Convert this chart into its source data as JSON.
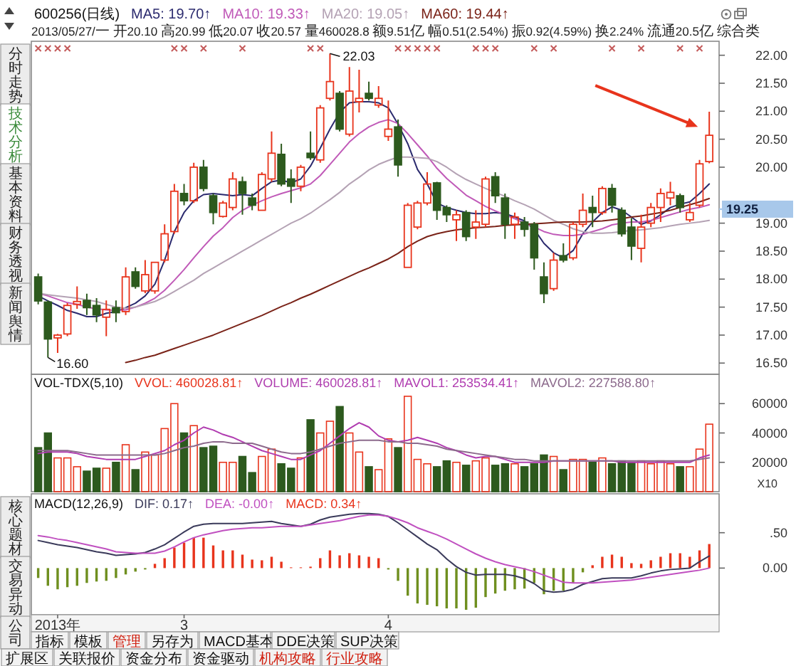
{
  "chart_data": [
    {
      "type": "candlestick",
      "title": "600256(日线)",
      "subtitle": "2013/05/27/一 开20.10 高20.99 低20.07 收20.57 量460028.8 额9.51亿 幅0.51(2.54%) 振0.92(4.59%) 换2.24% 流通20.5亿 综合类",
      "legend": "top",
      "tick_labels": "y",
      "categories": [
        null,
        null,
        null,
        null,
        null,
        null,
        null,
        null,
        null,
        null,
        null,
        null,
        null,
        null,
        null,
        null,
        null,
        null,
        null,
        null,
        null,
        null,
        null,
        null,
        null,
        null,
        null,
        null,
        null,
        null,
        null,
        null,
        null,
        null,
        null,
        null,
        null,
        null,
        null,
        null,
        null,
        null,
        null,
        null,
        null,
        null,
        null,
        null,
        null,
        null,
        null,
        null,
        null,
        null,
        null,
        null,
        null,
        null,
        null,
        null,
        null,
        null,
        null,
        null,
        null,
        null,
        null,
        null,
        null,
        null
      ],
      "ohlc": [
        [
          18.04,
          18.1,
          17.55,
          17.61
        ],
        [
          17.59,
          17.62,
          16.6,
          16.93
        ],
        [
          16.95,
          17.02,
          16.68,
          17.0
        ],
        [
          17.02,
          17.57,
          16.98,
          17.53
        ],
        [
          17.55,
          17.87,
          17.47,
          17.6
        ],
        [
          17.62,
          17.74,
          17.36,
          17.49
        ],
        [
          17.53,
          17.66,
          17.23,
          17.36
        ],
        [
          17.32,
          17.62,
          16.98,
          17.46
        ],
        [
          17.49,
          17.62,
          17.23,
          17.4
        ],
        [
          17.42,
          18.21,
          17.36,
          18.04
        ],
        [
          18.13,
          18.21,
          17.83,
          17.87
        ],
        [
          17.79,
          18.34,
          17.75,
          18.08
        ],
        [
          17.79,
          18.3,
          17.74,
          18.3
        ],
        [
          18.34,
          18.98,
          18.3,
          18.81
        ],
        [
          18.85,
          19.7,
          18.81,
          19.57
        ],
        [
          19.53,
          19.7,
          19.32,
          19.4
        ],
        [
          19.4,
          20.08,
          19.36,
          20.0
        ],
        [
          20.0,
          20.13,
          19.57,
          19.62
        ],
        [
          19.49,
          19.53,
          18.98,
          19.19
        ],
        [
          19.12,
          19.4,
          19.1,
          19.36
        ],
        [
          19.28,
          19.91,
          19.23,
          19.79
        ],
        [
          19.74,
          19.83,
          19.15,
          19.53
        ],
        [
          19.45,
          19.53,
          19.23,
          19.32
        ],
        [
          19.23,
          19.91,
          19.23,
          19.87
        ],
        [
          19.79,
          20.64,
          19.74,
          20.25
        ],
        [
          20.23,
          20.42,
          19.66,
          19.7
        ],
        [
          19.79,
          19.96,
          19.36,
          19.66
        ],
        [
          19.66,
          20.04,
          19.57,
          20.0
        ],
        [
          20.25,
          20.64,
          20.13,
          20.17
        ],
        [
          20.13,
          21.11,
          20.08,
          21.06
        ],
        [
          21.23,
          22.03,
          21.19,
          21.53
        ],
        [
          21.32,
          21.36,
          20.64,
          20.68
        ],
        [
          20.59,
          21.79,
          20.55,
          21.36
        ],
        [
          21.17,
          21.74,
          20.98,
          21.23
        ],
        [
          21.32,
          21.53,
          21.19,
          21.23
        ],
        [
          21.11,
          21.45,
          21.06,
          21.23
        ],
        [
          20.55,
          21.19,
          20.47,
          20.68
        ],
        [
          20.72,
          20.85,
          19.83,
          20.04
        ],
        [
          18.21,
          19.36,
          18.21,
          19.32
        ],
        [
          18.93,
          19.4,
          18.89,
          19.36
        ],
        [
          19.36,
          19.91,
          19.32,
          19.7
        ],
        [
          19.72,
          19.74,
          19.06,
          19.23
        ],
        [
          19.28,
          19.32,
          19.02,
          19.15
        ],
        [
          19.06,
          19.23,
          18.68,
          19.15
        ],
        [
          19.19,
          19.23,
          18.68,
          18.76
        ],
        [
          18.93,
          19.23,
          18.72,
          19.02
        ],
        [
          18.98,
          19.83,
          18.93,
          19.79
        ],
        [
          19.83,
          19.91,
          19.36,
          19.49
        ],
        [
          19.45,
          19.53,
          18.72,
          18.98
        ],
        [
          18.98,
          19.19,
          18.72,
          19.11
        ],
        [
          19.02,
          19.11,
          18.76,
          18.89
        ],
        [
          18.98,
          19.02,
          18.17,
          18.38
        ],
        [
          18.04,
          18.3,
          17.57,
          17.74
        ],
        [
          17.83,
          18.47,
          17.79,
          18.34
        ],
        [
          18.42,
          18.64,
          18.3,
          18.34
        ],
        [
          18.38,
          19.02,
          18.34,
          18.98
        ],
        [
          18.98,
          19.53,
          18.93,
          19.23
        ],
        [
          19.28,
          19.49,
          18.93,
          19.19
        ],
        [
          19.19,
          19.66,
          19.15,
          19.62
        ],
        [
          19.62,
          19.7,
          19.19,
          19.32
        ],
        [
          19.23,
          19.28,
          18.76,
          18.81
        ],
        [
          18.93,
          19.09,
          18.34,
          18.59
        ],
        [
          18.55,
          19.15,
          18.3,
          18.93
        ],
        [
          19.0,
          19.36,
          18.93,
          19.28
        ],
        [
          19.28,
          19.62,
          19.02,
          19.53
        ],
        [
          19.45,
          19.74,
          19.32,
          19.55
        ],
        [
          19.49,
          19.53,
          19.19,
          19.28
        ],
        [
          19.06,
          19.36,
          19.02,
          19.19
        ],
        [
          19.32,
          20.13,
          19.28,
          20.06
        ],
        [
          20.1,
          20.99,
          20.07,
          20.57
        ]
      ],
      "colors": [
        "#2d5a1e",
        "#2d5a1e",
        "#e8341c",
        "#e8341c",
        "#e8341c",
        "#2d5a1e",
        "#2d5a1e",
        "#e8341c",
        "#2d5a1e",
        "#e8341c",
        "#2d5a1e",
        "#e8341c",
        "#e8341c",
        "#e8341c",
        "#e8341c",
        "#2d5a1e",
        "#e8341c",
        "#2d5a1e",
        "#2d5a1e",
        "#e8341c",
        "#e8341c",
        "#2d5a1e",
        "#2d5a1e",
        "#e8341c",
        "#e8341c",
        "#2d5a1e",
        "#2d5a1e",
        "#e8341c",
        "#2d5a1e",
        "#e8341c",
        "#e8341c",
        "#2d5a1e",
        "#e8341c",
        "#e8341c",
        "#2d5a1e",
        "#e8341c",
        "#e8341c",
        "#2d5a1e",
        "#e8341c",
        "#e8341c",
        "#e8341c",
        "#2d5a1e",
        "#2d5a1e",
        "#e8341c",
        "#2d5a1e",
        "#e8341c",
        "#e8341c",
        "#2d5a1e",
        "#2d5a1e",
        "#e8341c",
        "#2d5a1e",
        "#2d5a1e",
        "#2d5a1e",
        "#e8341c",
        "#2d5a1e",
        "#e8341c",
        "#e8341c",
        "#2d5a1e",
        "#e8341c",
        "#2d5a1e",
        "#2d5a1e",
        "#2d5a1e",
        "#e8341c",
        "#e8341c",
        "#e8341c",
        "#e8341c",
        "#2d5a1e",
        "#e8341c",
        "#e8341c",
        "#e8341c"
      ],
      "series": [
        {
          "name": "MA5: 19.70↑",
          "type": "line",
          "color": "#2b2a6e",
          "values": [
            17.7,
            17.61,
            17.53,
            17.44,
            17.39,
            17.33,
            17.33,
            17.39,
            17.42,
            17.49,
            17.57,
            17.7,
            17.91,
            18.34,
            18.85,
            19.19,
            19.4,
            19.51,
            19.53,
            19.51,
            19.49,
            19.51,
            19.49,
            19.62,
            19.74,
            19.77,
            19.72,
            19.79,
            20.02,
            20.34,
            20.68,
            20.98,
            21.15,
            21.17,
            21.17,
            21.15,
            21.06,
            20.77,
            20.42,
            19.96,
            19.7,
            19.36,
            19.28,
            19.23,
            19.19,
            19.17,
            19.17,
            19.19,
            19.17,
            19.11,
            19.04,
            18.89,
            18.64,
            18.47,
            18.38,
            18.51,
            18.81,
            19.02,
            19.19,
            19.29,
            19.23,
            19.11,
            18.98,
            19.04,
            19.15,
            19.28,
            19.34,
            19.38,
            19.53,
            19.7
          ]
        },
        {
          "name": "MA10: 19.33↑",
          "type": "line",
          "color": "#c05ab8",
          "values": [
            17.75,
            17.7,
            17.64,
            17.58,
            17.55,
            17.5,
            17.47,
            17.45,
            17.44,
            17.45,
            17.5,
            17.57,
            17.66,
            17.8,
            17.98,
            18.17,
            18.38,
            18.58,
            18.77,
            18.92,
            19.1,
            19.23,
            19.32,
            19.4,
            19.47,
            19.53,
            19.58,
            19.63,
            19.7,
            19.85,
            20.05,
            20.25,
            20.45,
            20.6,
            20.72,
            20.8,
            20.85,
            20.78,
            20.6,
            20.4,
            20.2,
            19.98,
            19.8,
            19.65,
            19.5,
            19.4,
            19.3,
            19.22,
            19.15,
            19.08,
            19.0,
            18.93,
            18.85,
            18.8,
            18.78,
            18.78,
            18.8,
            18.85,
            18.9,
            18.97,
            19.0,
            19.02,
            19.02,
            19.05,
            19.1,
            19.15,
            19.2,
            19.25,
            19.28,
            19.33
          ]
        },
        {
          "name": "MA20: 19.05↑",
          "type": "line",
          "color": "#b4a2b4",
          "values": [
            17.75,
            17.72,
            17.7,
            17.68,
            17.66,
            17.63,
            17.6,
            17.55,
            17.5,
            17.48,
            17.5,
            17.55,
            17.6,
            17.68,
            17.78,
            17.88,
            17.98,
            18.1,
            18.2,
            18.3,
            18.4,
            18.5,
            18.6,
            18.7,
            18.8,
            18.9,
            19.0,
            19.08,
            19.18,
            19.3,
            19.42,
            19.55,
            19.7,
            19.82,
            19.95,
            20.05,
            20.12,
            20.18,
            20.18,
            20.17,
            20.16,
            20.1,
            20.0,
            19.88,
            19.78,
            19.7,
            19.62,
            19.55,
            19.48,
            19.4,
            19.33,
            19.25,
            19.15,
            19.05,
            18.98,
            18.9,
            18.85,
            18.82,
            18.82,
            18.83,
            18.85,
            18.87,
            18.88,
            18.9,
            18.92,
            18.95,
            18.98,
            19.0,
            19.02,
            19.05
          ]
        },
        {
          "name": "MA60: 19.44↑",
          "type": "line",
          "color": "#7a2318",
          "values": [
            null,
            null,
            null,
            null,
            null,
            null,
            null,
            null,
            null,
            16.51,
            16.55,
            16.6,
            16.64,
            16.7,
            16.76,
            16.82,
            16.88,
            16.94,
            17.0,
            17.07,
            17.14,
            17.21,
            17.28,
            17.35,
            17.43,
            17.51,
            17.58,
            17.66,
            17.73,
            17.81,
            17.89,
            17.97,
            18.05,
            18.13,
            18.2,
            18.28,
            18.36,
            18.46,
            18.58,
            18.68,
            18.76,
            18.81,
            18.85,
            18.88,
            18.9,
            18.92,
            18.93,
            18.94,
            18.96,
            18.97,
            18.98,
            18.99,
            19.0,
            19.01,
            19.02,
            19.02,
            19.02,
            19.03,
            19.04,
            19.06,
            19.08,
            19.11,
            19.13,
            19.16,
            19.19,
            19.23,
            19.28,
            19.33,
            19.38,
            19.44
          ]
        }
      ],
      "ylim": [
        16.3,
        22.25
      ],
      "yticks": [
        {
          "value": 16.5,
          "label": "16.50"
        },
        {
          "value": 17,
          "label": "17.00"
        },
        {
          "value": 17.5,
          "label": "17.50"
        },
        {
          "value": 18,
          "label": "18.00"
        },
        {
          "value": 18.5,
          "label": "18.50"
        },
        {
          "value": 19,
          "label": "19.00"
        },
        {
          "value": 20,
          "label": "20.00"
        },
        {
          "value": 20.5,
          "label": "20.50"
        },
        {
          "value": 21,
          "label": "21.00"
        },
        {
          "value": 21.5,
          "label": "21.50"
        },
        {
          "value": 22,
          "label": "22.00"
        }
      ],
      "ref_lines": [
        {
          "axis": "y",
          "value": 19.25,
          "label": "19.25",
          "color": "#a8c8ea"
        }
      ],
      "annotations": [
        "22.03",
        "16.60",
        "分时走势",
        "技术分析",
        "基本资料",
        "财务透视",
        "新闻舆情"
      ]
    },
    {
      "type": "bar",
      "title": "VOL-TDX(5,10)",
      "legend": "top left",
      "tick_labels": "y",
      "ylabel": "X10",
      "categories": [
        null,
        null,
        null,
        null,
        null,
        null,
        null,
        null,
        null,
        null,
        null,
        null,
        null,
        null,
        null,
        null,
        null,
        null,
        null,
        null,
        null,
        null,
        null,
        null,
        null,
        null,
        null,
        null,
        null,
        null,
        null,
        null,
        null,
        null,
        null,
        null,
        null,
        null,
        null,
        null,
        null,
        null,
        null,
        null,
        null,
        null,
        null,
        null,
        null,
        null,
        null,
        null,
        null,
        null,
        null,
        null,
        null,
        null,
        null,
        null,
        null,
        null,
        null,
        null,
        null,
        null,
        null,
        null,
        null,
        null
      ],
      "series": [
        {
          "name": "VVOL: 460028.81↑",
          "type": "bar",
          "colors": [
            "#2d5a1e",
            "#2d5a1e",
            "#e8341c",
            "#e8341c",
            "#e8341c",
            "#2d5a1e",
            "#2d5a1e",
            "#e8341c",
            "#2d5a1e",
            "#e8341c",
            "#2d5a1e",
            "#e8341c",
            "#e8341c",
            "#e8341c",
            "#e8341c",
            "#2d5a1e",
            "#e8341c",
            "#2d5a1e",
            "#2d5a1e",
            "#e8341c",
            "#e8341c",
            "#2d5a1e",
            "#2d5a1e",
            "#e8341c",
            "#e8341c",
            "#2d5a1e",
            "#2d5a1e",
            "#e8341c",
            "#2d5a1e",
            "#e8341c",
            "#e8341c",
            "#2d5a1e",
            "#e8341c",
            "#e8341c",
            "#2d5a1e",
            "#e8341c",
            "#e8341c",
            "#2d5a1e",
            "#e8341c",
            "#e8341c",
            "#e8341c",
            "#2d5a1e",
            "#2d5a1e",
            "#e8341c",
            "#2d5a1e",
            "#e8341c",
            "#e8341c",
            "#2d5a1e",
            "#2d5a1e",
            "#e8341c",
            "#2d5a1e",
            "#2d5a1e",
            "#2d5a1e",
            "#e8341c",
            "#2d5a1e",
            "#e8341c",
            "#e8341c",
            "#2d5a1e",
            "#e8341c",
            "#2d5a1e",
            "#2d5a1e",
            "#2d5a1e",
            "#e8341c",
            "#e8341c",
            "#e8341c",
            "#e8341c",
            "#2d5a1e",
            "#e8341c",
            "#e8341c",
            "#e8341c"
          ],
          "values": [
            30000,
            40000,
            23000,
            23000,
            17000,
            14000,
            16000,
            16000,
            20000,
            32000,
            15000,
            27000,
            25000,
            43000,
            60000,
            40000,
            45000,
            30000,
            31000,
            20000,
            20000,
            24000,
            13000,
            24000,
            29000,
            19000,
            16000,
            23000,
            49000,
            40000,
            48000,
            58000,
            40000,
            27000,
            17000,
            15000,
            36000,
            30000,
            65000,
            22000,
            19000,
            17000,
            21000,
            20000,
            18000,
            21000,
            23000,
            18000,
            19000,
            19000,
            17000,
            19000,
            25000,
            24000,
            15000,
            22000,
            22000,
            20000,
            23000,
            19000,
            21000,
            20000,
            21000,
            19000,
            21000,
            19000,
            17000,
            17000,
            29000,
            46000
          ]
        },
        {
          "name": "MAVOL1: 253534.41↑",
          "type": "line",
          "color": "#b03cb0",
          "values": [
            26000,
            27000,
            27000,
            27000,
            26000,
            24000,
            23000,
            22000,
            22000,
            22000,
            22000,
            24000,
            26000,
            28000,
            32000,
            35000,
            40000,
            44000,
            42000,
            39000,
            37000,
            34000,
            31000,
            28000,
            26000,
            24000,
            22000,
            22000,
            25000,
            28000,
            33000,
            38000,
            43000,
            47000,
            44000,
            38000,
            35000,
            34000,
            35000,
            37000,
            35000,
            33000,
            30000,
            28000,
            25000,
            23000,
            24000,
            24000,
            22000,
            20000,
            20000,
            20000,
            20000,
            21000,
            21000,
            21000,
            21000,
            21000,
            21000,
            21000,
            20000,
            20000,
            20000,
            20000,
            20000,
            20000,
            20000,
            20000,
            23000,
            25000
          ]
        },
        {
          "name": "MAVOL2: 227588.80↑",
          "type": "line",
          "color": "#8c6a8c",
          "values": [
            28000,
            28000,
            28000,
            28000,
            27000,
            26000,
            25000,
            25000,
            25000,
            25000,
            25000,
            25000,
            25000,
            26000,
            28000,
            30000,
            31000,
            33000,
            34000,
            34000,
            33000,
            33000,
            33000,
            31000,
            29000,
            27000,
            26000,
            26000,
            27000,
            29000,
            31000,
            33000,
            34000,
            35000,
            35000,
            35000,
            34000,
            34000,
            33000,
            33000,
            32000,
            31000,
            29000,
            28000,
            27000,
            26000,
            25000,
            24000,
            23000,
            22000,
            22000,
            21000,
            21000,
            21000,
            21000,
            21000,
            21000,
            21000,
            21000,
            21000,
            21000,
            21000,
            21000,
            21000,
            21000,
            21000,
            21000,
            21000,
            22000,
            23000
          ]
        }
      ],
      "ylim": [
        0,
        80000
      ],
      "yticks": [
        20000,
        40000,
        60000
      ],
      "annotations": [
        "VOLUME: 460028.81↑"
      ]
    },
    {
      "type": "bar",
      "title": "MACD(12,26,9)",
      "legend": "top left",
      "categories": [
        null,
        null,
        "2013年",
        null,
        null,
        null,
        null,
        null,
        null,
        null,
        null,
        null,
        null,
        null,
        null,
        "3",
        null,
        null,
        null,
        null,
        null,
        null,
        null,
        null,
        null,
        null,
        null,
        null,
        null,
        null,
        null,
        null,
        null,
        null,
        null,
        null,
        "4",
        null,
        null,
        null,
        null,
        null,
        null,
        null,
        null,
        null,
        null,
        null,
        null,
        null,
        null,
        null,
        null,
        null,
        null,
        null,
        null,
        null,
        null,
        null,
        null,
        null,
        null,
        null,
        null,
        null,
        null,
        null,
        null,
        null
      ],
      "series": [
        {
          "name": "DIF: 0.17↑",
          "type": "line",
          "color": "#3a3a5a",
          "values": [
            0.39,
            0.36,
            0.33,
            0.31,
            0.29,
            0.26,
            0.23,
            0.21,
            0.18,
            0.19,
            0.2,
            0.22,
            0.27,
            0.33,
            0.42,
            0.51,
            0.59,
            0.62,
            0.63,
            0.63,
            0.63,
            0.63,
            0.64,
            0.65,
            0.66,
            0.63,
            0.61,
            0.59,
            0.62,
            0.68,
            0.72,
            0.74,
            0.76,
            0.77,
            0.77,
            0.76,
            0.73,
            0.64,
            0.54,
            0.44,
            0.34,
            0.26,
            0.13,
            0.02,
            -0.06,
            -0.1,
            -0.09,
            -0.09,
            -0.09,
            -0.11,
            -0.15,
            -0.22,
            -0.32,
            -0.34,
            -0.33,
            -0.3,
            -0.23,
            -0.19,
            -0.15,
            -0.14,
            -0.14,
            -0.14,
            -0.11,
            -0.07,
            -0.04,
            -0.02,
            -0.01,
            0.0,
            0.09,
            0.17
          ]
        },
        {
          "name": "DEA: -0.00↑",
          "type": "line",
          "color": "#c050c0",
          "values": [
            0.46,
            0.44,
            0.41,
            0.39,
            0.36,
            0.33,
            0.3,
            0.27,
            0.23,
            0.22,
            0.21,
            0.21,
            0.21,
            0.24,
            0.3,
            0.37,
            0.43,
            0.47,
            0.5,
            0.53,
            0.55,
            0.56,
            0.57,
            0.57,
            0.58,
            0.59,
            0.59,
            0.59,
            0.61,
            0.63,
            0.65,
            0.67,
            0.7,
            0.73,
            0.75,
            0.75,
            0.73,
            0.69,
            0.64,
            0.57,
            0.52,
            0.47,
            0.41,
            0.34,
            0.27,
            0.2,
            0.14,
            0.09,
            0.05,
            0.02,
            -0.01,
            -0.05,
            -0.1,
            -0.15,
            -0.2,
            -0.21,
            -0.21,
            -0.21,
            -0.2,
            -0.19,
            -0.18,
            -0.17,
            -0.15,
            -0.13,
            -0.11,
            -0.09,
            -0.07,
            -0.05,
            -0.03,
            0.0
          ]
        },
        {
          "name": "MACD: 0.34↑",
          "type": "bar",
          "colors": [
            "#6f8f1f",
            "#6f8f1f",
            "#6f8f1f",
            "#6f8f1f",
            "#6f8f1f",
            "#6f8f1f",
            "#6f8f1f",
            "#6f8f1f",
            "#6f8f1f",
            "#6f8f1f",
            "#6f8f1f",
            "#6f8f1f",
            "#e8341c",
            "#e8341c",
            "#e8341c",
            "#e8341c",
            "#e8341c",
            "#e8341c",
            "#e8341c",
            "#e8341c",
            "#e8341c",
            "#e8341c",
            "#e8341c",
            "#e8341c",
            "#e8341c",
            "#e8341c",
            "#e8341c",
            "#e8341c",
            "#e8341c",
            "#e8341c",
            "#e8341c",
            "#e8341c",
            "#e8341c",
            "#e8341c",
            "#e8341c",
            "#e8341c",
            "#6f8f1f",
            "#6f8f1f",
            "#6f8f1f",
            "#6f8f1f",
            "#6f8f1f",
            "#6f8f1f",
            "#6f8f1f",
            "#6f8f1f",
            "#6f8f1f",
            "#6f8f1f",
            "#6f8f1f",
            "#6f8f1f",
            "#6f8f1f",
            "#6f8f1f",
            "#6f8f1f",
            "#6f8f1f",
            "#6f8f1f",
            "#6f8f1f",
            "#6f8f1f",
            "#6f8f1f",
            "#6f8f1f",
            "#e8341c",
            "#e8341c",
            "#e8341c",
            "#e8341c",
            "#e8341c",
            "#e8341c",
            "#e8341c",
            "#e8341c",
            "#e8341c",
            "#e8341c",
            "#e8341c",
            "#e8341c",
            "#e8341c"
          ],
          "values": [
            -0.14,
            -0.25,
            -0.3,
            -0.27,
            -0.25,
            -0.21,
            -0.19,
            -0.18,
            -0.14,
            -0.09,
            -0.05,
            -0.02,
            0.06,
            0.14,
            0.29,
            0.36,
            0.43,
            0.43,
            0.32,
            0.25,
            0.25,
            0.19,
            0.12,
            0.11,
            0.16,
            0.09,
            0.01,
            0.01,
            0.02,
            0.14,
            0.25,
            0.18,
            0.21,
            0.18,
            0.16,
            0.14,
            -0.02,
            -0.18,
            -0.39,
            -0.5,
            -0.52,
            -0.54,
            -0.57,
            -0.57,
            -0.59,
            -0.56,
            -0.41,
            -0.36,
            -0.32,
            -0.3,
            -0.29,
            -0.21,
            -0.37,
            -0.32,
            -0.32,
            -0.21,
            -0.06,
            0.04,
            0.16,
            0.19,
            0.16,
            0.07,
            0.06,
            0.11,
            0.16,
            0.21,
            0.21,
            0.16,
            0.25,
            0.34
          ]
        }
      ],
      "ylim": [
        -0.66,
        1.05
      ],
      "yticks": [
        {
          "value": 0,
          "label": "0.00"
        },
        {
          "value": 0.5,
          "label": ".50"
        }
      ],
      "annotations": [
        "核心题材",
        "交易异动",
        "公司",
        "指标",
        "模板",
        "管理",
        "另存为",
        "MACD基本",
        "DDE决策",
        "SUP决策",
        "扩展区",
        "关联报价",
        "资金分布",
        "资金驱动",
        "机构攻略",
        "行业攻略"
      ]
    }
  ]
}
